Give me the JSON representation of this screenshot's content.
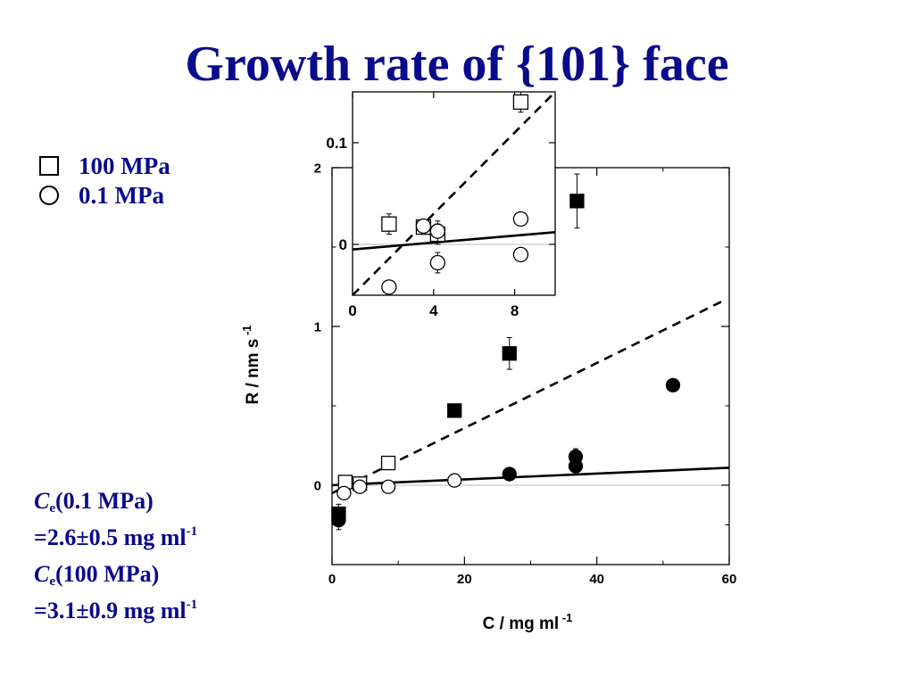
{
  "title": "Growth rate of {101} face",
  "legend": [
    {
      "label": "100 MPa",
      "symbol": "open-square"
    },
    {
      "label": "0.1 MPa",
      "symbol": "open-circle"
    }
  ],
  "equilibrium": {
    "line1_symbol": "C",
    "line1_sub": "e",
    "line1_rest": "(0.1 MPa)",
    "line2_text": "=2.6±0.5 mg ml",
    "line2_sup": "-1",
    "line3_symbol": "C",
    "line3_sub": "e",
    "line3_rest": "(100 MPa)",
    "line4_text": "=3.1±0.9 mg ml",
    "line4_sup": "-1"
  },
  "colors": {
    "title": "#0a0a8c",
    "text": "#0a0a8c",
    "marks": "#000000",
    "zero_line": "#bbbbbb"
  },
  "chart_data": [
    {
      "type": "scatter",
      "xlabel_main": "C / mg ml",
      "xlabel_sup": "-1",
      "ylabel_main": "R / nm s",
      "ylabel_sup": "-1",
      "xlim": [
        0,
        60
      ],
      "ylim": [
        -0.5,
        2
      ],
      "xticks": [
        0,
        20,
        40,
        60
      ],
      "yticks": [
        0,
        1,
        2
      ],
      "grid": false,
      "series": [
        {
          "name": "100 MPa",
          "marker": "square",
          "fill": "open",
          "x": [
            2.0,
            4.2,
            8.5
          ],
          "y": [
            0.02,
            0.01,
            0.14
          ]
        },
        {
          "name": "0.1 MPa",
          "marker": "circle",
          "fill": "open",
          "x": [
            1.8,
            4.2,
            8.5,
            18.5
          ],
          "y": [
            -0.05,
            -0.01,
            -0.01,
            0.03
          ]
        },
        {
          "marker": "square",
          "fill": "filled",
          "x": [
            1.0,
            18.5,
            26.8,
            37.0
          ],
          "y": [
            -0.18,
            0.47,
            0.83,
            1.79
          ],
          "err": [
            0.06,
            0,
            0.1,
            0.17
          ]
        },
        {
          "marker": "circle",
          "fill": "filled",
          "x": [
            1.0,
            26.8,
            36.8,
            36.8,
            51.5
          ],
          "y": [
            -0.22,
            0.07,
            0.12,
            0.18,
            0.63
          ],
          "err": [
            0.06,
            0,
            0,
            0.05,
            0
          ]
        }
      ],
      "fits": [
        {
          "style": "dashed",
          "x": [
            0,
            59.5
          ],
          "y": [
            -0.05,
            1.17
          ]
        },
        {
          "style": "solid",
          "x": [
            0,
            60
          ],
          "y": [
            0.0,
            0.11
          ]
        }
      ]
    },
    {
      "type": "scatter",
      "inset": true,
      "xlim": [
        0,
        10
      ],
      "ylim": [
        -0.05,
        0.15
      ],
      "xticks": [
        0,
        4,
        8
      ],
      "yticks": [
        0,
        0.1
      ],
      "ytick_labels": [
        "0",
        "0.1"
      ],
      "series": [
        {
          "name": "100 MPa",
          "marker": "square",
          "fill": "open",
          "x": [
            1.8,
            3.5,
            4.2,
            8.3
          ],
          "y": [
            0.02,
            0.017,
            0.01,
            0.14
          ],
          "err": [
            0.01,
            0,
            0.01,
            0.01
          ]
        },
        {
          "name": "0.1 MPa",
          "marker": "circle",
          "fill": "open",
          "x": [
            1.8,
            3.5,
            4.2,
            4.2,
            8.3,
            8.3
          ],
          "y": [
            -0.042,
            0.018,
            0.013,
            -0.018,
            0.025,
            -0.01
          ],
          "err": [
            0,
            0,
            0.01,
            0.01,
            0,
            0
          ]
        }
      ],
      "fits": [
        {
          "style": "dashed",
          "x": [
            0,
            10
          ],
          "y": [
            -0.05,
            0.15
          ]
        },
        {
          "style": "solid",
          "x": [
            0,
            10
          ],
          "y": [
            -0.005,
            0.012
          ]
        }
      ]
    }
  ]
}
